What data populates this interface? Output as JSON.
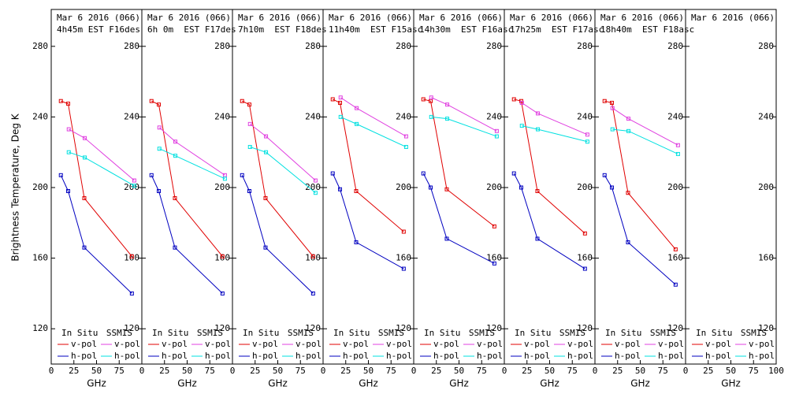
{
  "chart_data": [
    {
      "type": "line",
      "title": "Mar 6 2016 (066)",
      "subtitle": "4h45m EST F16des",
      "y_label": "Brightness Temperature, Deg K",
      "x_label": "GHz",
      "legend_groups": [
        "In Situ",
        "SSMIS"
      ],
      "xlim": [
        0,
        100
      ],
      "xticks": [
        0,
        25,
        50,
        75
      ],
      "ylim": [
        100,
        300
      ],
      "yticks": [
        120,
        160,
        200,
        240,
        280
      ],
      "series": [
        {
          "name": "v-pol",
          "color": "#e00000",
          "x": [
            10.65,
            18.7,
            36.5,
            89
          ],
          "values": [
            249,
            247.5,
            194,
            161
          ]
        },
        {
          "name": "h-pol",
          "color": "#0000c0",
          "x": [
            10.65,
            18.7,
            36.5,
            89
          ],
          "values": [
            207,
            198,
            166,
            140
          ]
        },
        {
          "name": "v-pol",
          "color": "#e040e0",
          "x": [
            19.35,
            37,
            91.655
          ],
          "values": [
            233,
            228,
            204
          ]
        },
        {
          "name": "h-pol",
          "color": "#00e0e0",
          "x": [
            19.35,
            37,
            91.655
          ],
          "values": [
            220,
            217,
            201
          ]
        }
      ]
    },
    {
      "type": "line",
      "title": "Mar 6 2016 (066)",
      "subtitle": "6h 0m  EST F17des",
      "x_label": "GHz",
      "legend_groups": [
        "In Situ",
        "SSMIS"
      ],
      "xlim": [
        0,
        100
      ],
      "xticks": [
        0,
        25,
        50,
        75
      ],
      "ylim": [
        100,
        300
      ],
      "yticks": [
        120,
        160,
        200,
        240,
        280
      ],
      "series": [
        {
          "name": "v-pol",
          "color": "#e00000",
          "x": [
            10.65,
            18.7,
            36.5,
            89
          ],
          "values": [
            249,
            247,
            194,
            161
          ]
        },
        {
          "name": "h-pol",
          "color": "#0000c0",
          "x": [
            10.65,
            18.7,
            36.5,
            89
          ],
          "values": [
            207,
            198,
            166,
            140
          ]
        },
        {
          "name": "v-pol",
          "color": "#e040e0",
          "x": [
            19.35,
            37,
            91.655
          ],
          "values": [
            234,
            226,
            207
          ]
        },
        {
          "name": "h-pol",
          "color": "#00e0e0",
          "x": [
            19.35,
            37,
            91.655
          ],
          "values": [
            222,
            218,
            205
          ]
        }
      ]
    },
    {
      "type": "line",
      "title": "Mar 6 2016 (066)",
      "subtitle": "7h10m  EST F18des",
      "x_label": "GHz",
      "legend_groups": [
        "In Situ",
        "SSMIS"
      ],
      "xlim": [
        0,
        100
      ],
      "xticks": [
        0,
        25,
        50,
        75
      ],
      "ylim": [
        100,
        300
      ],
      "yticks": [
        120,
        160,
        200,
        240,
        280
      ],
      "series": [
        {
          "name": "v-pol",
          "color": "#e00000",
          "x": [
            10.65,
            18.7,
            36.5,
            89
          ],
          "values": [
            249,
            247,
            194,
            161
          ]
        },
        {
          "name": "h-pol",
          "color": "#0000c0",
          "x": [
            10.65,
            18.7,
            36.5,
            89
          ],
          "values": [
            207,
            198,
            166,
            140
          ]
        },
        {
          "name": "v-pol",
          "color": "#e040e0",
          "x": [
            19.35,
            37,
            91.655
          ],
          "values": [
            236,
            229,
            204
          ]
        },
        {
          "name": "h-pol",
          "color": "#00e0e0",
          "x": [
            19.35,
            37,
            91.655
          ],
          "values": [
            223,
            220,
            197
          ]
        }
      ]
    },
    {
      "type": "line",
      "title": "Mar 6 2016 (066)",
      "subtitle": "11h40m  EST F15asc",
      "x_label": "GHz",
      "legend_groups": [
        "In Situ",
        "SSMIS"
      ],
      "xlim": [
        0,
        100
      ],
      "xticks": [
        0,
        25,
        50,
        75
      ],
      "ylim": [
        100,
        300
      ],
      "yticks": [
        120,
        160,
        200,
        240,
        280
      ],
      "series": [
        {
          "name": "v-pol",
          "color": "#e00000",
          "x": [
            10.65,
            18.7,
            36.5,
            89
          ],
          "values": [
            250,
            248,
            198,
            175
          ]
        },
        {
          "name": "h-pol",
          "color": "#0000c0",
          "x": [
            10.65,
            18.7,
            36.5,
            89
          ],
          "values": [
            208,
            199,
            169,
            154
          ]
        },
        {
          "name": "v-pol",
          "color": "#e040e0",
          "x": [
            19.35,
            37,
            91.655
          ],
          "values": [
            251,
            245,
            229
          ]
        },
        {
          "name": "h-pol",
          "color": "#00e0e0",
          "x": [
            19.35,
            37,
            91.655
          ],
          "values": [
            240,
            236,
            223
          ]
        }
      ]
    },
    {
      "type": "line",
      "title": "Mar 6 2016 (066)",
      "subtitle": "14h30m  EST F16asc",
      "x_label": "GHz",
      "legend_groups": [
        "In Situ",
        "SSMIS"
      ],
      "xlim": [
        0,
        100
      ],
      "xticks": [
        0,
        25,
        50,
        75
      ],
      "ylim": [
        100,
        300
      ],
      "yticks": [
        120,
        160,
        200,
        240,
        280
      ],
      "series": [
        {
          "name": "v-pol",
          "color": "#e00000",
          "x": [
            10.65,
            18.7,
            36.5,
            89
          ],
          "values": [
            250,
            249,
            199,
            178
          ]
        },
        {
          "name": "h-pol",
          "color": "#0000c0",
          "x": [
            10.65,
            18.7,
            36.5,
            89
          ],
          "values": [
            208,
            200,
            171,
            157
          ]
        },
        {
          "name": "v-pol",
          "color": "#e040e0",
          "x": [
            19.35,
            37,
            91.655
          ],
          "values": [
            251,
            247,
            232
          ]
        },
        {
          "name": "h-pol",
          "color": "#00e0e0",
          "x": [
            19.35,
            37,
            91.655
          ],
          "values": [
            240,
            239,
            229
          ]
        }
      ]
    },
    {
      "type": "line",
      "title": "Mar 6 2016 (066)",
      "subtitle": "17h25m  EST F17asc",
      "x_label": "GHz",
      "legend_groups": [
        "In Situ",
        "SSMIS"
      ],
      "xlim": [
        0,
        100
      ],
      "xticks": [
        0,
        25,
        50,
        75
      ],
      "ylim": [
        100,
        300
      ],
      "yticks": [
        120,
        160,
        200,
        240,
        280
      ],
      "series": [
        {
          "name": "v-pol",
          "color": "#e00000",
          "x": [
            10.65,
            18.7,
            36.5,
            89
          ],
          "values": [
            250,
            249,
            198,
            174
          ]
        },
        {
          "name": "h-pol",
          "color": "#0000c0",
          "x": [
            10.65,
            18.7,
            36.5,
            89
          ],
          "values": [
            208,
            200,
            171,
            154
          ]
        },
        {
          "name": "v-pol",
          "color": "#e040e0",
          "x": [
            19.35,
            37,
            91.655
          ],
          "values": [
            248,
            242,
            230
          ]
        },
        {
          "name": "h-pol",
          "color": "#00e0e0",
          "x": [
            19.35,
            37,
            91.655
          ],
          "values": [
            235,
            233,
            226
          ]
        }
      ]
    },
    {
      "type": "line",
      "title": "Mar 6 2016 (066)",
      "subtitle": "18h40m  EST F18asc",
      "x_label": "GHz",
      "legend_groups": [
        "In Situ",
        "SSMIS"
      ],
      "xlim": [
        0,
        100
      ],
      "xticks": [
        0,
        25,
        50,
        75
      ],
      "ylim": [
        100,
        300
      ],
      "yticks": [
        120,
        160,
        200,
        240,
        280
      ],
      "series": [
        {
          "name": "v-pol",
          "color": "#e00000",
          "x": [
            10.65,
            18.7,
            36.5,
            89
          ],
          "values": [
            249,
            248,
            197,
            165
          ]
        },
        {
          "name": "h-pol",
          "color": "#0000c0",
          "x": [
            10.65,
            18.7,
            36.5,
            89
          ],
          "values": [
            207,
            200,
            169,
            145
          ]
        },
        {
          "name": "v-pol",
          "color": "#e040e0",
          "x": [
            19.35,
            37,
            91.655
          ],
          "values": [
            245,
            239,
            224
          ]
        },
        {
          "name": "h-pol",
          "color": "#00e0e0",
          "x": [
            19.35,
            37,
            91.655
          ],
          "values": [
            233,
            232,
            219
          ]
        }
      ]
    },
    {
      "type": "line",
      "title": "Mar 6 2016 (066)",
      "x_label": "GHz",
      "legend_groups": [
        "In Situ",
        "SSMIS"
      ],
      "xlim": [
        0,
        100
      ],
      "xticks": [
        0,
        25,
        50,
        75,
        100
      ],
      "ylim": [
        100,
        300
      ],
      "yticks": [
        120,
        160,
        200,
        240,
        280
      ],
      "series": [
        {
          "name": "v-pol",
          "color": "#e00000",
          "x": [],
          "values": []
        },
        {
          "name": "h-pol",
          "color": "#0000c0",
          "x": [],
          "values": []
        },
        {
          "name": "v-pol",
          "color": "#e040e0",
          "x": [],
          "values": []
        },
        {
          "name": "h-pol",
          "color": "#00e0e0",
          "x": [],
          "values": []
        }
      ]
    }
  ]
}
